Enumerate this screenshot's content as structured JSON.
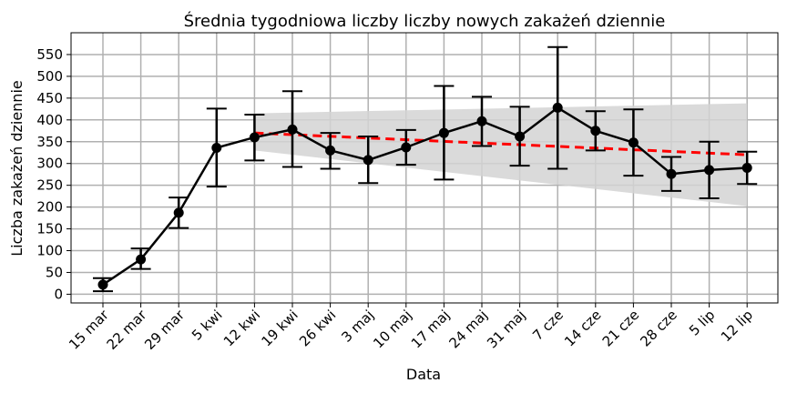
{
  "chart_data": {
    "type": "line",
    "title": "Średnia tygodniowa liczby liczby nowych zakażeń dziennie",
    "xlabel": "Data",
    "ylabel": "Liczba zakażeń dziennie",
    "categories": [
      "15 mar",
      "22 mar",
      "29 mar",
      "5 kwi",
      "12 kwi",
      "19 kwi",
      "26 kwi",
      "3 maj",
      "10 maj",
      "17 maj",
      "24 maj",
      "31 maj",
      "7 cze",
      "14 cze",
      "21 cze",
      "28 cze",
      "5 lip",
      "12 lip"
    ],
    "yticks": [
      0,
      50,
      100,
      150,
      200,
      250,
      300,
      350,
      400,
      450,
      500,
      550
    ],
    "ylim": [
      -20,
      600
    ],
    "grid": true,
    "series": [
      {
        "values": [
          22,
          80,
          187,
          336,
          360,
          378,
          330,
          308,
          337,
          370,
          397,
          362,
          428,
          375,
          348,
          276,
          285,
          290
        ],
        "error_low": [
          7,
          58,
          152,
          247,
          307,
          292,
          288,
          255,
          297,
          263,
          340,
          295,
          288,
          330,
          272,
          237,
          220,
          253
        ],
        "error_high": [
          37,
          105,
          222,
          426,
          412,
          466,
          370,
          362,
          377,
          478,
          453,
          430,
          567,
          420,
          424,
          315,
          350,
          327
        ],
        "color": "#000000"
      }
    ],
    "trend": {
      "color": "#ff0000",
      "style": "dashed",
      "start_index": 4,
      "end_index": 17,
      "start_value": 370,
      "end_value": 320
    },
    "band": {
      "color": "#d3d3d3",
      "start_index": 4,
      "end_index": 17,
      "start_low": 330,
      "start_high": 415,
      "end_low": 202,
      "end_high": 438
    }
  }
}
